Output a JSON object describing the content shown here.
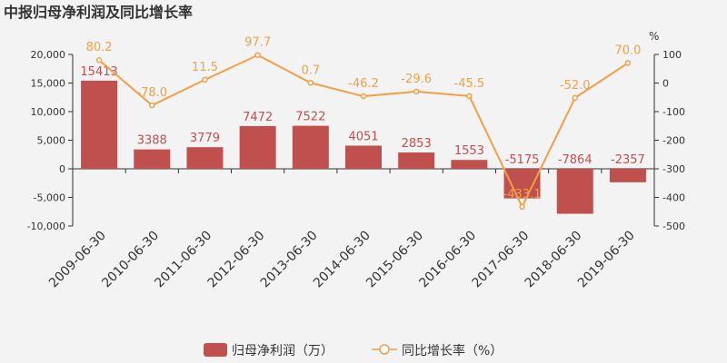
{
  "chart_data": {
    "type": "bar",
    "title": "中报归母净利润及同比增长率",
    "categories": [
      "2009-06-30",
      "2010-06-30",
      "2011-06-30",
      "2012-06-30",
      "2013-06-30",
      "2014-06-30",
      "2015-06-30",
      "2016-06-30",
      "2017-06-30",
      "2018-06-30",
      "2019-06-30"
    ],
    "series": [
      {
        "name": "归母净利润（万）",
        "type": "bar",
        "axis": "left",
        "color": "#c0504d",
        "values": [
          15413,
          3388,
          3779,
          7472,
          7522,
          4051,
          2853,
          1553,
          -5175,
          -7864,
          -2357
        ],
        "labels": [
          "15413",
          "3388",
          "3779",
          "7472",
          "7522",
          "4051",
          "2853",
          "1553",
          "-5175",
          "-7864",
          "-2357"
        ]
      },
      {
        "name": "同比增长率（%）",
        "type": "line",
        "axis": "right",
        "color": "#f0a046",
        "values": [
          80.2,
          -78.0,
          11.5,
          97.7,
          0.7,
          -46.2,
          -29.6,
          -45.5,
          -433.1,
          -52.0,
          70.0
        ],
        "labels": [
          "80.2",
          "-78.0",
          "11.5",
          "97.7",
          "0.7",
          "-46.2",
          "-29.6",
          "-45.5",
          "-433.1",
          "-52.0",
          "70.0"
        ]
      }
    ],
    "left_axis": {
      "ylim": [
        -10000,
        20000
      ],
      "ticks": [
        20000,
        15000,
        10000,
        5000,
        0,
        -5000,
        -10000
      ],
      "tick_labels": [
        "20,000",
        "15,000",
        "10,000",
        "5,000",
        "0",
        "-5,000",
        "-10,000"
      ]
    },
    "right_axis": {
      "unit": "%",
      "ylim": [
        -500,
        100
      ],
      "ticks": [
        100,
        0,
        -100,
        -200,
        -300,
        -400,
        -500
      ],
      "tick_labels": [
        "100",
        "0",
        "-100",
        "-200",
        "-300",
        "-400",
        "-500"
      ]
    },
    "grid": false,
    "legend_position": "bottom-center"
  }
}
